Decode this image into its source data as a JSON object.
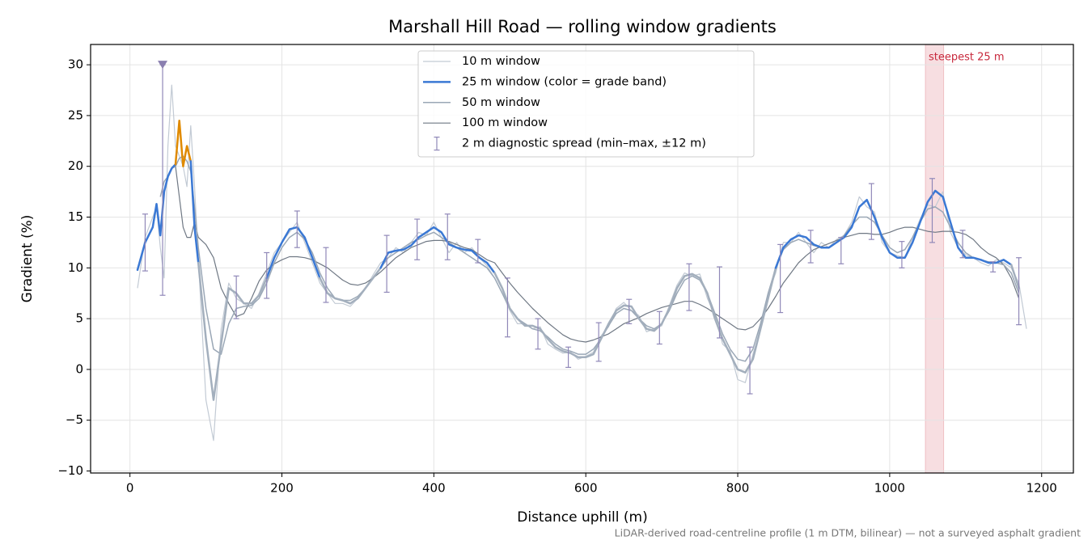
{
  "chart_data": {
    "type": "line",
    "title": "Marshall Hill Road — rolling window gradients",
    "xlabel": "Distance uphill (m)",
    "ylabel": "Gradient (%)",
    "footnote": "LiDAR-derived road-centreline profile (1 m DTM, bilinear) — not a surveyed asphalt gradient",
    "xlim": [
      -51.8,
      1241.8
    ],
    "ylim": [
      -10.2,
      32
    ],
    "xticks": [
      0,
      200,
      400,
      600,
      800,
      1000,
      1200
    ],
    "yticks": [
      {
        "value": -10,
        "label": "−10"
      },
      {
        "value": -5,
        "label": "−5"
      },
      0,
      5,
      10,
      15,
      20,
      25,
      30
    ],
    "grid": true,
    "legend": "upper center",
    "x": [
      10,
      20,
      30,
      35,
      40,
      45,
      50,
      55,
      60,
      65,
      70,
      75,
      80,
      85,
      90,
      100,
      110,
      120,
      130,
      140,
      150,
      160,
      170,
      180,
      190,
      200,
      210,
      220,
      230,
      240,
      250,
      260,
      270,
      280,
      290,
      300,
      310,
      320,
      330,
      340,
      350,
      360,
      370,
      380,
      390,
      400,
      410,
      420,
      430,
      440,
      450,
      460,
      470,
      480,
      490,
      500,
      510,
      520,
      530,
      540,
      550,
      560,
      570,
      580,
      590,
      600,
      610,
      620,
      630,
      640,
      650,
      660,
      670,
      680,
      690,
      700,
      710,
      720,
      730,
      740,
      750,
      760,
      770,
      780,
      790,
      800,
      810,
      820,
      830,
      840,
      850,
      860,
      870,
      880,
      890,
      900,
      910,
      920,
      930,
      940,
      950,
      960,
      970,
      980,
      990,
      1000,
      1010,
      1020,
      1030,
      1040,
      1050,
      1060,
      1070,
      1080,
      1090,
      1100,
      1110,
      1120,
      1130,
      1140,
      1150,
      1160,
      1170,
      1180
    ],
    "series": [
      {
        "name": "10 m window",
        "color": "#c2cad4",
        "width": 1.2,
        "values": [
          8,
          13,
          15,
          16,
          12,
          9,
          22,
          28,
          22,
          21,
          20,
          18,
          24,
          18,
          11,
          -3,
          -7,
          4,
          8.5,
          7,
          6.5,
          6,
          7.5,
          9.5,
          11.5,
          12.5,
          13.5,
          14.5,
          12.5,
          10.5,
          8.5,
          7.5,
          6.5,
          6.5,
          6.2,
          7,
          8,
          9.3,
          10.5,
          11,
          12,
          11.5,
          12.5,
          13.5,
          13.2,
          14.5,
          13,
          11.5,
          12.5,
          11.5,
          12,
          11,
          10.2,
          9,
          7.5,
          5.8,
          4.5,
          4.5,
          4,
          4.2,
          2.5,
          2,
          1.6,
          1.7,
          1,
          1.3,
          1.7,
          3.3,
          4.2,
          6,
          6.6,
          5.8,
          5.3,
          3.7,
          4,
          4.3,
          6.3,
          8.3,
          9.5,
          9.2,
          9.4,
          7,
          5.3,
          2.5,
          1.8,
          -1,
          -1.3,
          1.5,
          4,
          7.5,
          9.5,
          12.5,
          12.5,
          13.5,
          12.5,
          11.5,
          12.5,
          12,
          12.8,
          13.2,
          14.5,
          17,
          16,
          15.5,
          12.5,
          11.5,
          11.2,
          11,
          13,
          14.8,
          16.2,
          16,
          17.5,
          13.5,
          12,
          11.3,
          11,
          10.5,
          10.2,
          10.8,
          10.5,
          10,
          8.5,
          4
        ]
      },
      {
        "name": "100 m window",
        "color": "#6f7884",
        "width": 1.2,
        "values": [
          null,
          null,
          null,
          null,
          null,
          null,
          null,
          null,
          20,
          17,
          14,
          13,
          13,
          14.5,
          13,
          12.3,
          11,
          8,
          6.5,
          5.2,
          5.5,
          7,
          8.7,
          9.8,
          10.4,
          10.8,
          11.1,
          11.1,
          11,
          10.8,
          10.4,
          10,
          9.4,
          8.8,
          8.4,
          8.3,
          8.5,
          9,
          9.6,
          10.3,
          11,
          11.5,
          12,
          12.3,
          12.6,
          12.7,
          12.7,
          12.6,
          12.3,
          12,
          11.8,
          11.3,
          10.8,
          10.5,
          9.5,
          8.5,
          7.6,
          6.8,
          6,
          5.3,
          4.6,
          4,
          3.4,
          3,
          2.8,
          2.7,
          2.9,
          3.2,
          3.5,
          4,
          4.5,
          4.8,
          5.1,
          5.5,
          5.8,
          6.1,
          6.3,
          6.5,
          6.7,
          6.7,
          6.4,
          6,
          5.5,
          5,
          4.5,
          4,
          3.9,
          4.2,
          5,
          6,
          7.2,
          8.5,
          9.5,
          10.5,
          11.2,
          11.8,
          12.1,
          12.4,
          12.7,
          13,
          13.2,
          13.4,
          13.4,
          13.3,
          13.3,
          13.5,
          13.8,
          14,
          14,
          13.8,
          13.6,
          13.5,
          13.6,
          13.6,
          13.5,
          13.3,
          12.8,
          12,
          11.4,
          11,
          10.3,
          9,
          7,
          null
        ]
      },
      {
        "name": "50 m window",
        "color": "#9aa7b6",
        "width": 1.5,
        "values": [
          null,
          null,
          null,
          null,
          17,
          18.5,
          19,
          19.8,
          20,
          20.8,
          21,
          20.5,
          19.5,
          16,
          12,
          6,
          2,
          1.5,
          4.5,
          6,
          6.2,
          6.3,
          7,
          8.5,
          10.5,
          12,
          13,
          13.5,
          12.8,
          11.5,
          9.5,
          8,
          7,
          6.8,
          6.8,
          7.2,
          8,
          9,
          10,
          11,
          11.5,
          12,
          12.5,
          12.8,
          13.2,
          13.5,
          13,
          12.5,
          12,
          11.5,
          11,
          10.5,
          10,
          9,
          7.5,
          6,
          5,
          4.5,
          4,
          3.8,
          3.2,
          2.5,
          2,
          1.8,
          1.5,
          1.5,
          2,
          3,
          4.3,
          5.5,
          6,
          5.8,
          5,
          4.3,
          4,
          4.5,
          5.8,
          7.5,
          8.8,
          9.2,
          8.8,
          7.5,
          5.5,
          3.5,
          2,
          1,
          0.8,
          2,
          4.5,
          7.5,
          10,
          11.8,
          12.5,
          12.8,
          12.5,
          12.2,
          12,
          12,
          12.5,
          13.2,
          14.2,
          15,
          15,
          14.5,
          13.2,
          12,
          11.5,
          11.8,
          13,
          14.5,
          15.8,
          16,
          15.5,
          14,
          12.5,
          11.5,
          11,
          10.8,
          10.6,
          10.5,
          10.3,
          9.5,
          7.5,
          null
        ]
      },
      {
        "name": "25 m window (color = grade band)",
        "color": "#3a78d4",
        "width": 2.5,
        "bands": [
          {
            "below": 10,
            "color": "#a3afbd"
          },
          {
            "above": 20,
            "color": "#e08a00"
          }
        ],
        "values": [
          9.8,
          12.5,
          14,
          16.3,
          13.2,
          17.5,
          19,
          19.8,
          20.2,
          24.5,
          20,
          22,
          20.5,
          14,
          10.5,
          3,
          -3,
          2.5,
          8,
          7.5,
          6.5,
          6.5,
          7.3,
          9,
          11,
          12.5,
          13.8,
          14,
          13,
          11,
          9,
          7.5,
          7,
          6.8,
          6.5,
          7,
          8,
          9,
          10,
          11.5,
          11.7,
          11.8,
          12.2,
          13,
          13.5,
          14,
          13.5,
          12.3,
          12,
          11.8,
          11.7,
          11,
          10.5,
          9.5,
          8,
          6,
          5,
          4.3,
          4.3,
          4,
          3,
          2.2,
          1.8,
          1.6,
          1.2,
          1.2,
          1.5,
          3,
          4.5,
          5.8,
          6.3,
          6.2,
          5,
          4,
          3.8,
          4.5,
          6,
          8,
          9.2,
          9.4,
          9,
          7.5,
          5,
          3,
          1.5,
          0,
          -0.3,
          1,
          4,
          7,
          10,
          12,
          12.8,
          13.2,
          13,
          12.3,
          12,
          12,
          12.5,
          13,
          14,
          16,
          16.7,
          15,
          13,
          11.5,
          11,
          11,
          12.5,
          14.5,
          16.5,
          17.6,
          17,
          14.5,
          12,
          11,
          11,
          10.8,
          10.5,
          10.5,
          10.8,
          10.3,
          8,
          null
        ]
      }
    ],
    "legend_order": [
      0,
      3,
      2,
      1
    ],
    "errorbars": {
      "name": "2 m diagnostic spread (min–max, ±12 m)",
      "color": "#9088b8",
      "x": [
        20,
        43,
        140,
        180,
        220,
        258,
        338,
        378,
        418,
        458,
        497,
        537,
        577,
        617,
        657,
        697,
        736,
        776,
        816,
        856,
        896,
        936,
        976,
        1016,
        1056,
        1096,
        1136,
        1170
      ],
      "low": [
        9.7,
        7.3,
        5,
        7,
        12,
        6.6,
        7.6,
        10.8,
        10.8,
        10.5,
        3.2,
        2,
        0.2,
        0.8,
        4.5,
        2.5,
        5.8,
        3.1,
        -2.4,
        5.6,
        10.5,
        10.4,
        12.8,
        10,
        12.5,
        11,
        9.6,
        4.4
      ],
      "high": [
        15.3,
        30,
        9.2,
        11.5,
        15.6,
        12,
        13.2,
        14.8,
        15.3,
        12.8,
        9,
        5,
        2.2,
        4.6,
        6.9,
        5.7,
        10.4,
        10.1,
        2.2,
        12.3,
        13.7,
        13,
        18.3,
        12.6,
        18.8,
        13.7,
        10.6,
        11
      ]
    },
    "clip_marker": {
      "x": 43,
      "y": 30,
      "color": "#8a7fb0"
    },
    "highlight": {
      "label": "steepest 25 m",
      "x0": 1047,
      "x1": 1071,
      "color": "#e8a0a8",
      "text_color": "#c8283c"
    }
  }
}
